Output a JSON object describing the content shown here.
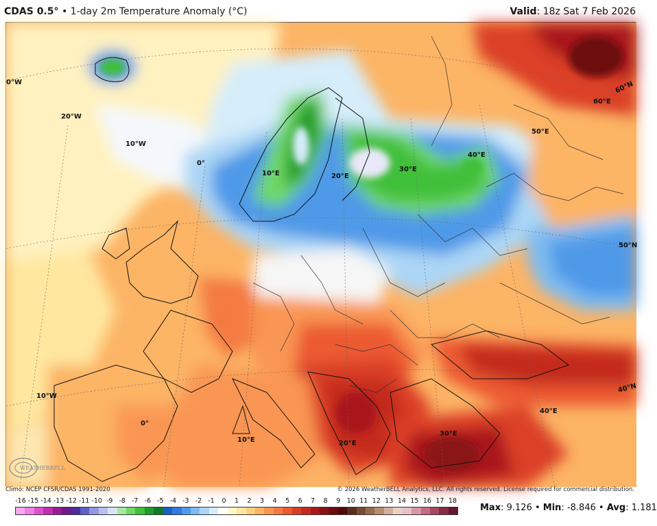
{
  "header": {
    "product": "CDAS 0.5°",
    "separator": "•",
    "description": "1-day 2m Temperature Anomaly (°C)",
    "valid_label": "Valid",
    "valid_time": "18z Sat 7 Feb 2026"
  },
  "map": {
    "lat_labels": [
      "60°N",
      "60°E",
      "50°N",
      "40°N"
    ],
    "lon_labels": [
      "0°W",
      "20°W",
      "10°W",
      "0°",
      "10°E",
      "20°E",
      "30°E",
      "40°E",
      "50°E",
      "10°W",
      "0°",
      "10°E",
      "20°E",
      "30°E",
      "40°E"
    ],
    "logo_text": "WEATHERBELL"
  },
  "footer": {
    "climo": "Climo: NCEP CFSR/CDAS 1991-2020",
    "copyright": "© 2026 WeatherBELL Analytics, LLC. All rights reserved. License required for commercial distribution."
  },
  "legend": {
    "ticks": [
      "-16",
      "-15",
      "-14",
      "-13",
      "-12",
      "-11",
      "-10",
      "-9",
      "-8",
      "-7",
      "-6",
      "-5",
      "-4",
      "-3",
      "-2",
      "-1",
      "0",
      "1",
      "2",
      "3",
      "4",
      "5",
      "6",
      "7",
      "8",
      "9",
      "10",
      "11",
      "12",
      "13",
      "14",
      "15",
      "16",
      "17",
      "18"
    ],
    "colors": [
      "#f7a8f0",
      "#ee7fe3",
      "#dc52cf",
      "#c22fb3",
      "#9a1d93",
      "#6e1a8c",
      "#4a2c9e",
      "#5b61c7",
      "#8f98e0",
      "#b9c0f0",
      "#d8e5f7",
      "#a6e8a0",
      "#6fd868",
      "#3fbf3a",
      "#1e9c28",
      "#12792c",
      "#1b5fc7",
      "#2f7be0",
      "#4f9ae8",
      "#7fbbf0",
      "#acd6f5",
      "#d6edfa",
      "#ffffff",
      "#fff7c8",
      "#ffe7a0",
      "#fdd07d",
      "#fcb465",
      "#f99652",
      "#f47a42",
      "#ec5a33",
      "#dc3f28",
      "#c42a1f",
      "#a8191a",
      "#8a1214",
      "#6d0c10",
      "#4f0a0c",
      "#5a2e1e",
      "#7a4b33",
      "#9a6a4f",
      "#b88c72",
      "#d4b09a",
      "#e9d2c4",
      "#e8c0c8",
      "#d897a6",
      "#c46c82",
      "#a8475f",
      "#852d44",
      "#65182e"
    ]
  },
  "stats": {
    "max_label": "Max",
    "max_value": "9.126",
    "min_label": "Min",
    "min_value": "-8.846",
    "avg_label": "Avg",
    "avg_value": "1.181"
  }
}
